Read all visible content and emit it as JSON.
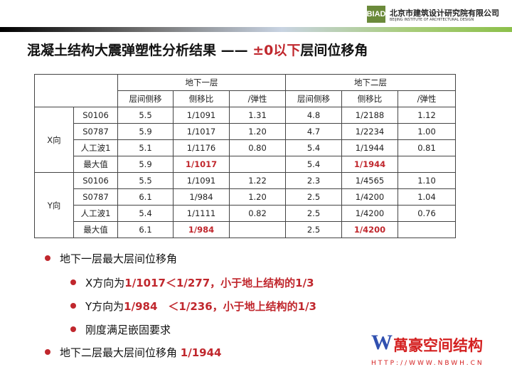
{
  "header": {
    "logo": "BIAD",
    "org_cn": "北京市建筑设计研究院有限公司",
    "org_en": "BEIJING INSTITUTE OF ARCHITECTURAL DESIGN"
  },
  "title": {
    "black": "混凝土结构大震弹塑性分析结果 —— ",
    "red": "±0以下",
    "black2": "层间位移角"
  },
  "table": {
    "group_headers": [
      "地下一层",
      "地下二层"
    ],
    "sub_headers": [
      "层间侧移",
      "侧移比",
      "/弹性",
      "层间侧移",
      "侧移比",
      "/弹性"
    ],
    "sections": [
      {
        "dir": "X向",
        "rows": [
          [
            "S0106",
            "5.5",
            "1/1091",
            "1.31",
            "4.8",
            "1/2188",
            "1.12"
          ],
          [
            "S0787",
            "5.9",
            "1/1017",
            "1.20",
            "4.7",
            "1/2234",
            "1.00"
          ],
          [
            "人工波1",
            "5.1",
            "1/1176",
            "0.80",
            "5.4",
            "1/1944",
            "0.81"
          ],
          [
            "最大值",
            "5.9",
            "1/1017",
            "",
            "5.4",
            "1/1944",
            ""
          ]
        ]
      },
      {
        "dir": "Y向",
        "rows": [
          [
            "S0106",
            "5.5",
            "1/1091",
            "1.22",
            "2.3",
            "1/4565",
            "1.10"
          ],
          [
            "S0787",
            "6.1",
            "1/984",
            "1.20",
            "2.5",
            "1/4200",
            "1.04"
          ],
          [
            "人工波1",
            "5.4",
            "1/1111",
            "0.82",
            "2.5",
            "1/4200",
            "0.76"
          ],
          [
            "最大值",
            "6.1",
            "1/984",
            "",
            "2.5",
            "1/4200",
            ""
          ]
        ]
      }
    ]
  },
  "watermark": {
    "text": "萬豪空间结构",
    "url": "HTTP://WWW.NBWH.CN",
    "letter": "W"
  },
  "bullets": [
    {
      "text": "地下一层最大层间位移角",
      "red": ""
    },
    {
      "text": "X方向为",
      "red": "1/1017＜1/277，小于地上结构的1/3"
    },
    {
      "text": "Y方向为",
      "red": "1/984　＜1/236，小于地上结构的1/3"
    },
    {
      "text": "刚度满足嵌固要求",
      "red": ""
    },
    {
      "text": "地下二层最大层间位移角 ",
      "red": "1/1944"
    }
  ],
  "colors": {
    "accent": "#c0272d",
    "logo": "#6b8a3a"
  }
}
